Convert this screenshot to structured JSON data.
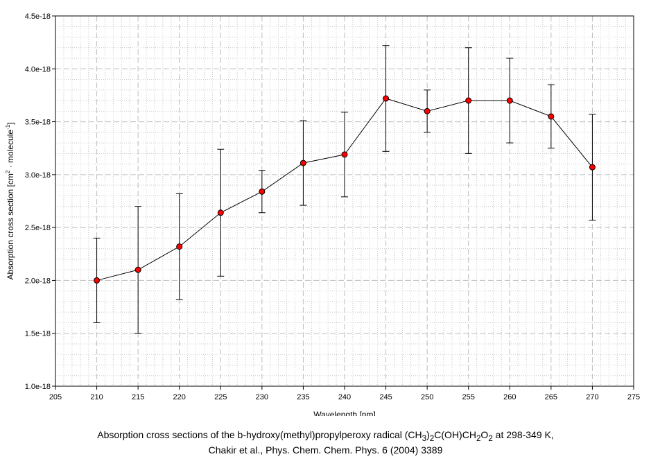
{
  "chart_data": {
    "type": "line",
    "title": "",
    "xlabel": "Wavelength [nm]",
    "ylabel_parts": [
      "Absorption cross section [cm",
      "2",
      " · molecule",
      "-1",
      "]"
    ],
    "xlim": [
      205,
      275
    ],
    "ylim": [
      1e-18,
      4.5e-18
    ],
    "x_ticks": [
      205,
      210,
      215,
      220,
      225,
      230,
      235,
      240,
      245,
      250,
      255,
      260,
      265,
      270,
      275
    ],
    "y_ticks": [
      1e-18,
      1.5e-18,
      2e-18,
      2.5e-18,
      3e-18,
      3.5e-18,
      4e-18,
      4.5e-18
    ],
    "y_tick_labels": [
      "1.0e-18",
      "1.5e-18",
      "2.0e-18",
      "2.5e-18",
      "3.0e-18",
      "3.5e-18",
      "4.0e-18",
      "4.5e-18"
    ],
    "grid": true,
    "series": [
      {
        "name": "(CH3)2C(OH)CH2O2",
        "marker_color": "#ff0000",
        "line_color": "#000000",
        "x": [
          210,
          215,
          220,
          225,
          230,
          235,
          240,
          245,
          250,
          255,
          260,
          265,
          270
        ],
        "y": [
          2e-18,
          2.1e-18,
          2.32e-18,
          2.64e-18,
          2.84e-18,
          3.11e-18,
          3.19e-18,
          3.72e-18,
          3.6e-18,
          3.7e-18,
          3.7e-18,
          3.55e-18,
          3.07e-18
        ],
        "err": [
          4e-19,
          6e-19,
          5e-19,
          6e-19,
          2e-19,
          4e-19,
          4e-19,
          5e-19,
          2e-19,
          5e-19,
          4e-19,
          3e-19,
          5e-19
        ]
      }
    ]
  },
  "caption": {
    "line1_pre": "Absorption cross sections of the b-hydroxy(methyl)propylperoxy radical (CH",
    "sub1": "3",
    "mid1": ")",
    "sub2": "2",
    "mid2": "C(OH)CH",
    "sub3": "2",
    "mid3": "O",
    "sub4": "2",
    "line1_post": " at 298-349 K,",
    "line2": "Chakir et al., Phys. Chem. Chem. Phys. 6 (2004) 3389"
  }
}
